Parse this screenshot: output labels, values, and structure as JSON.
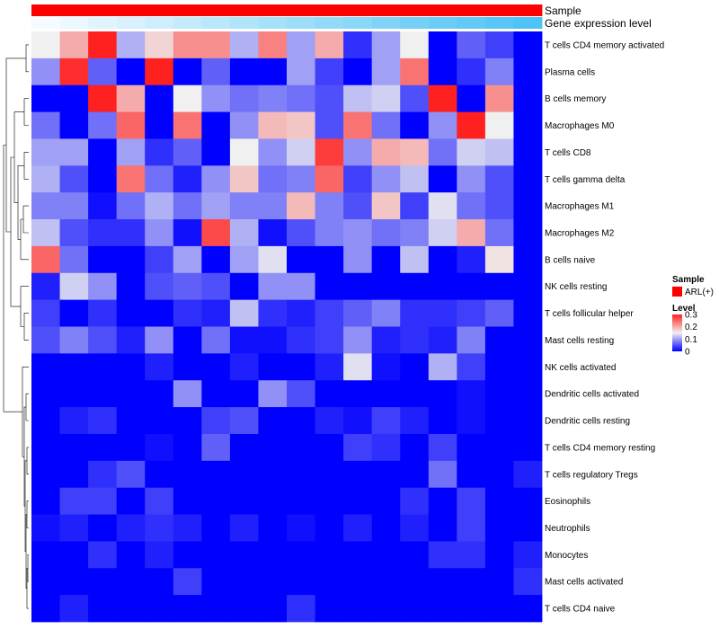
{
  "chart_data": {
    "type": "heatmap",
    "annotation_tracks": [
      {
        "name": "Sample",
        "color_start": "#ff0000",
        "color_end": "#ff0000"
      },
      {
        "name": "Gene expression level",
        "color_start": "#f5fbff",
        "color_end": "#4ec3f5"
      }
    ],
    "rows": [
      "T cells CD4 memory activated",
      "Plasma cells",
      "B cells memory",
      "Macrophages M0",
      "T cells CD8",
      "T cells gamma delta",
      "Macrophages M1",
      "Macrophages M2",
      "B cells naive",
      "NK cells resting",
      "T cells follicular helper",
      "Mast cells resting",
      "NK cells activated",
      "Dendritic cells activated",
      "Dendritic cells resting",
      "T cells CD4 memory resting",
      "T cells regulatory  Tregs",
      "Eosinophils",
      "Neutrophils",
      "Monocytes",
      "Mast cells activated",
      "T cells CD4 naive"
    ],
    "n_columns": 18,
    "values": [
      [
        0.15,
        0.2,
        0.3,
        0.11,
        0.17,
        0.22,
        0.22,
        0.11,
        0.23,
        0.1,
        0.2,
        0.03,
        0.1,
        0.15,
        0.0,
        0.06,
        0.04,
        0.0
      ],
      [
        0.09,
        0.29,
        0.06,
        0.0,
        0.3,
        0.0,
        0.06,
        0.0,
        0.0,
        0.1,
        0.04,
        0.0,
        0.1,
        0.24,
        0.0,
        0.03,
        0.08,
        0.0
      ],
      [
        0.0,
        0.0,
        0.3,
        0.2,
        0.0,
        0.15,
        0.09,
        0.07,
        0.08,
        0.07,
        0.05,
        0.12,
        0.13,
        0.05,
        0.3,
        0.0,
        0.22,
        0.0
      ],
      [
        0.07,
        0.0,
        0.07,
        0.25,
        0.0,
        0.24,
        0.0,
        0.09,
        0.19,
        0.18,
        0.05,
        0.24,
        0.07,
        0.0,
        0.09,
        0.3,
        0.15,
        0.0
      ],
      [
        0.1,
        0.1,
        0.0,
        0.1,
        0.03,
        0.06,
        0.0,
        0.15,
        0.09,
        0.13,
        0.28,
        0.09,
        0.2,
        0.19,
        0.07,
        0.13,
        0.12,
        0.0
      ],
      [
        0.11,
        0.05,
        0.0,
        0.24,
        0.07,
        0.02,
        0.09,
        0.18,
        0.07,
        0.08,
        0.25,
        0.04,
        0.09,
        0.12,
        0.0,
        0.09,
        0.05,
        0.0
      ],
      [
        0.08,
        0.08,
        0.01,
        0.07,
        0.11,
        0.07,
        0.1,
        0.08,
        0.08,
        0.19,
        0.08,
        0.05,
        0.18,
        0.04,
        0.14,
        0.07,
        0.05,
        0.0
      ],
      [
        0.12,
        0.05,
        0.03,
        0.03,
        0.09,
        0.01,
        0.27,
        0.11,
        0.01,
        0.05,
        0.08,
        0.09,
        0.07,
        0.08,
        0.13,
        0.2,
        0.07,
        0.0
      ],
      [
        0.25,
        0.07,
        0.0,
        0.0,
        0.04,
        0.1,
        0.0,
        0.1,
        0.14,
        0.0,
        0.0,
        0.09,
        0.0,
        0.12,
        0.0,
        0.02,
        0.16,
        0.0
      ],
      [
        0.02,
        0.13,
        0.09,
        0.0,
        0.05,
        0.06,
        0.05,
        0.0,
        0.09,
        0.09,
        0.0,
        0.0,
        0.0,
        0.0,
        0.0,
        0.0,
        0.0,
        0.0
      ],
      [
        0.04,
        0.0,
        0.03,
        0.0,
        0.0,
        0.03,
        0.02,
        0.12,
        0.03,
        0.02,
        0.04,
        0.06,
        0.08,
        0.03,
        0.03,
        0.04,
        0.06,
        0.0
      ],
      [
        0.05,
        0.08,
        0.05,
        0.02,
        0.09,
        0.0,
        0.07,
        0.01,
        0.01,
        0.03,
        0.04,
        0.09,
        0.02,
        0.03,
        0.02,
        0.08,
        0.0,
        0.0
      ],
      [
        0.0,
        0.0,
        0.0,
        0.0,
        0.02,
        0.0,
        0.0,
        0.02,
        0.0,
        0.0,
        0.02,
        0.14,
        0.01,
        0.0,
        0.11,
        0.04,
        0.0,
        0.0
      ],
      [
        0.0,
        0.0,
        0.0,
        0.0,
        0.0,
        0.09,
        0.0,
        0.0,
        0.09,
        0.05,
        0.0,
        0.0,
        0.0,
        0.0,
        0.0,
        0.01,
        0.0,
        0.0
      ],
      [
        0.0,
        0.02,
        0.03,
        0.0,
        0.0,
        0.0,
        0.04,
        0.05,
        0.0,
        0.0,
        0.02,
        0.01,
        0.04,
        0.02,
        0.0,
        0.01,
        0.0,
        0.0
      ],
      [
        0.0,
        0.0,
        0.0,
        0.0,
        0.01,
        0.0,
        0.06,
        0.0,
        0.0,
        0.0,
        0.0,
        0.04,
        0.03,
        0.0,
        0.04,
        0.0,
        0.0,
        0.0
      ],
      [
        0.0,
        0.0,
        0.03,
        0.05,
        0.0,
        0.0,
        0.0,
        0.0,
        0.0,
        0.0,
        0.0,
        0.0,
        0.0,
        0.0,
        0.07,
        0.0,
        0.0,
        0.02
      ],
      [
        0.0,
        0.04,
        0.04,
        0.0,
        0.04,
        0.0,
        0.0,
        0.0,
        0.0,
        0.0,
        0.0,
        0.0,
        0.0,
        0.03,
        0.0,
        0.04,
        0.0,
        0.0
      ],
      [
        0.01,
        0.02,
        0.0,
        0.02,
        0.03,
        0.02,
        0.0,
        0.02,
        0.0,
        0.01,
        0.0,
        0.02,
        0.0,
        0.02,
        0.0,
        0.04,
        0.0,
        0.0
      ],
      [
        0.0,
        0.0,
        0.03,
        0.0,
        0.02,
        0.0,
        0.0,
        0.0,
        0.0,
        0.0,
        0.0,
        0.0,
        0.0,
        0.0,
        0.03,
        0.03,
        0.0,
        0.02
      ],
      [
        0.0,
        0.0,
        0.0,
        0.0,
        0.0,
        0.04,
        0.0,
        0.0,
        0.0,
        0.0,
        0.0,
        0.0,
        0.0,
        0.0,
        0.0,
        0.0,
        0.0,
        0.03
      ],
      [
        0.0,
        0.02,
        0.0,
        0.0,
        0.0,
        0.0,
        0.0,
        0.0,
        0.0,
        0.03,
        0.0,
        0.0,
        0.0,
        0.0,
        0.0,
        0.0,
        0.0,
        0.0
      ]
    ],
    "color_scale": {
      "low_color": "#0000ff",
      "mid_color": "#f0f0f0",
      "high_color": "#ff2020",
      "range": [
        0,
        0.3
      ]
    },
    "legend": {
      "sample_title": "Sample",
      "sample_entry": "ARL(+)",
      "sample_color": "#ff0000",
      "level_title": "Level",
      "ticks": [
        "0.3",
        "0.2",
        "0.1",
        "0"
      ],
      "tick_values": [
        0.3,
        0.2,
        0.1,
        0
      ]
    },
    "row_dendrogram": true
  }
}
